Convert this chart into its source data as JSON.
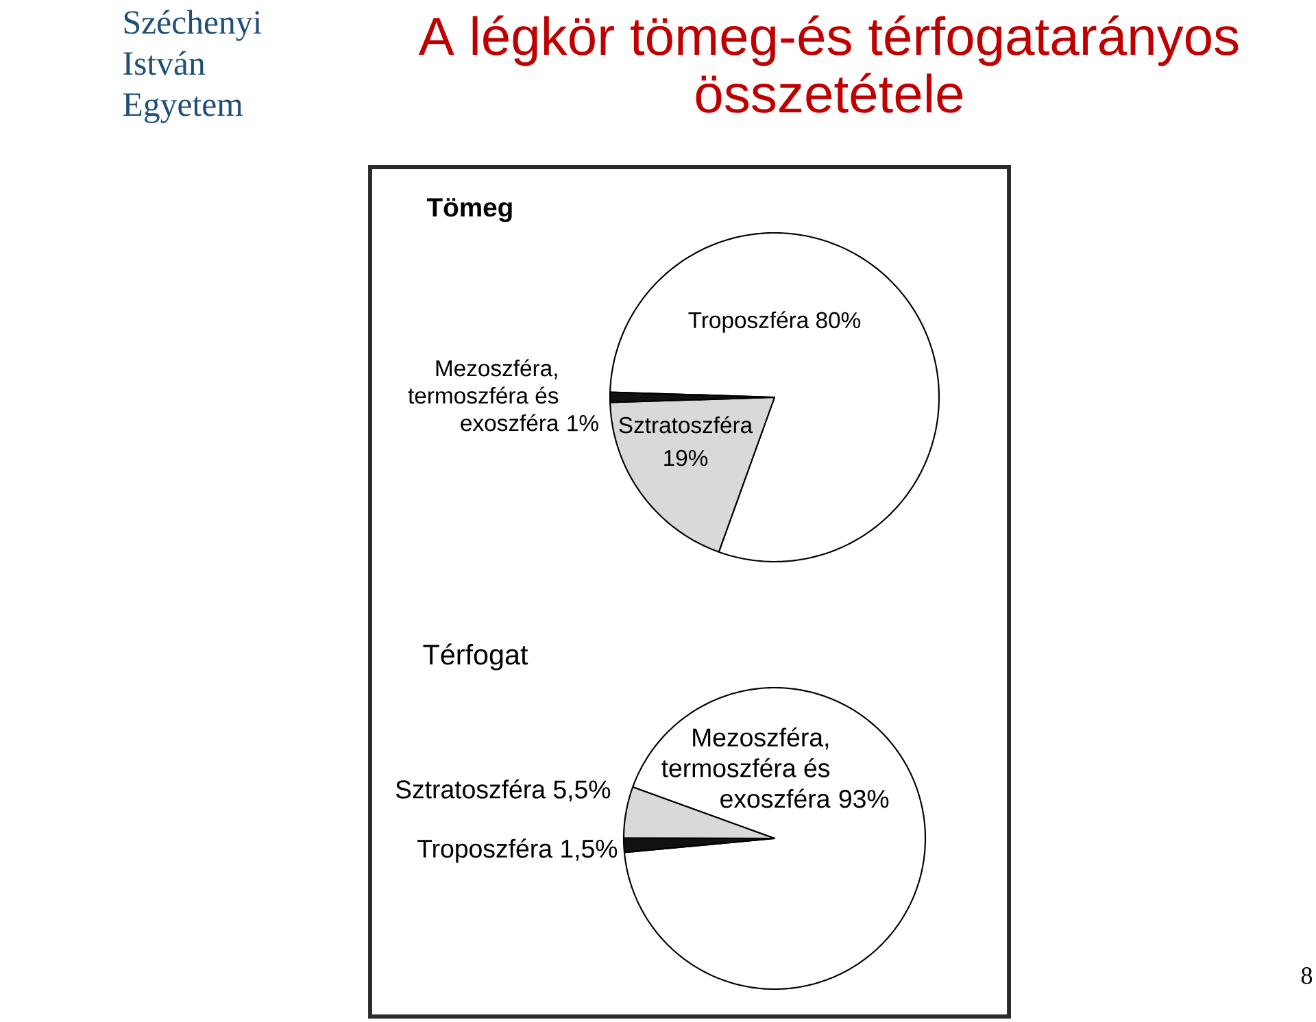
{
  "chart_data": [
    {
      "type": "other",
      "title": "A légkör tömeg-és térfogatarányos összetétele",
      "annotations": [
        "Széchenyi István Egyetem",
        "8"
      ]
    },
    {
      "type": "pie",
      "title": "Tömeg",
      "categories": [
        "Troposzféra",
        "Sztratoszféra",
        "Mezoszféra, termoszféra és exoszféra"
      ],
      "values": [
        80,
        19,
        1
      ],
      "value_labels": [
        "80%",
        "19%",
        "1%"
      ],
      "colors": [
        "#ffffff",
        "#d9d9d9",
        "#111111"
      ]
    },
    {
      "type": "pie",
      "title": "Térfogat",
      "categories": [
        "Mezoszféra, termoszféra és exoszféra",
        "Sztratoszféra",
        "Troposzféra"
      ],
      "values": [
        93,
        5.5,
        1.5
      ],
      "value_labels": [
        "93%",
        "5,5%",
        "1,5%"
      ],
      "colors": [
        "#ffffff",
        "#d9d9d9",
        "#111111"
      ]
    }
  ]
}
